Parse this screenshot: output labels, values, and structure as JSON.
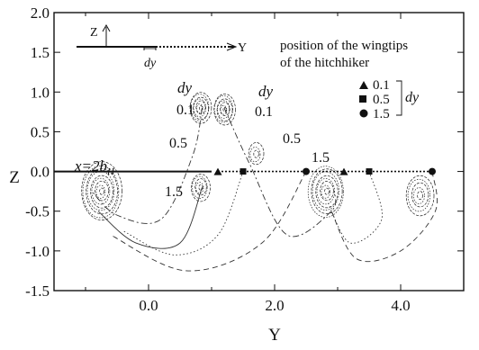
{
  "chart_data": {
    "type": "line",
    "xlabel": "Y",
    "ylabel": "Z",
    "xlim": [
      -1.5,
      5.0
    ],
    "ylim": [
      -1.5,
      2.0
    ],
    "xticks": [
      0.0,
      2.0,
      4.0
    ],
    "xtick_labels": [
      "0.0",
      "2.0",
      "4.0"
    ],
    "yticks": [
      2.0,
      1.5,
      1.0,
      0.5,
      0.0,
      -0.5,
      -1.0,
      -1.5
    ],
    "ytick_labels": [
      "2.0",
      "1.5",
      "1.0",
      "0.5",
      "0.0",
      "-0.5",
      "-1.0",
      "-1.5"
    ],
    "grid": false,
    "legend": {
      "position": "top-right",
      "title_line1": "position of the wingtips",
      "title_line2": "of the hitchhiker",
      "group_label": "dy",
      "entries": [
        {
          "marker": "triangle",
          "label": "0.1",
          "y": 3.1,
          "z": 0.0
        },
        {
          "marker": "square",
          "label": "0.5",
          "y": 3.5,
          "z": 0.0
        },
        {
          "marker": "circle",
          "label": "1.5",
          "y": 4.5,
          "z": 0.0
        }
      ]
    },
    "annotations": {
      "station": "x=2b",
      "station_sub": "H",
      "inset_z": "Z",
      "inset_y": "Y",
      "inset_dy": "dy",
      "dy_left": "dy",
      "dy_right": "dy",
      "left_01": "0.1",
      "right_01": "0.1",
      "left_05": "0.5",
      "right_05": "0.5",
      "left_15": "1.5",
      "right_15": "1.5"
    },
    "leader_wing": {
      "y_start": -1.5,
      "y_end": 1.0,
      "z": 0.0
    },
    "hitchhiker_wings": [
      {
        "dy": 0.1,
        "y_start": 1.1,
        "y_end": 3.1,
        "z": 0.0
      },
      {
        "dy": 0.5,
        "y_start": 1.5,
        "y_end": 3.5,
        "z": 0.0
      },
      {
        "dy": 1.5,
        "y_start": 2.5,
        "y_end": 4.5,
        "z": 0.0
      }
    ],
    "vortex_centers": [
      {
        "y": -0.75,
        "z": -0.25,
        "rings": 9,
        "r": 0.32
      },
      {
        "y": 0.82,
        "z": 0.8,
        "rings": 7,
        "r": 0.17
      },
      {
        "y": 1.2,
        "z": 0.78,
        "rings": 7,
        "r": 0.17
      },
      {
        "y": 0.82,
        "z": -0.2,
        "rings": 5,
        "r": 0.15
      },
      {
        "y": 2.82,
        "z": -0.25,
        "rings": 8,
        "r": 0.28
      },
      {
        "y": 4.3,
        "z": -0.3,
        "rings": 5,
        "r": 0.22
      },
      {
        "y": 1.7,
        "z": 0.22,
        "rings": 3,
        "r": 0.12
      }
    ],
    "trajectories": [
      {
        "style": "dashdot",
        "points": [
          [
            0.85,
            0.8
          ],
          [
            0.7,
            0.2
          ],
          [
            0.2,
            -0.6
          ],
          [
            -0.5,
            -0.55
          ],
          [
            -0.9,
            -0.25
          ]
        ]
      },
      {
        "style": "dashdot",
        "points": [
          [
            1.2,
            0.8
          ],
          [
            1.6,
            0.1
          ],
          [
            2.2,
            -0.8
          ],
          [
            2.9,
            -0.5
          ],
          [
            2.95,
            -0.25
          ]
        ]
      },
      {
        "style": "solid",
        "points": [
          [
            0.85,
            -0.2
          ],
          [
            0.5,
            -0.9
          ],
          [
            -0.2,
            -0.9
          ],
          [
            -0.8,
            -0.5
          ]
        ]
      },
      {
        "style": "dotted",
        "points": [
          [
            1.5,
            0.0
          ],
          [
            1.1,
            -0.8
          ],
          [
            0.4,
            -1.05
          ],
          [
            -0.4,
            -0.75
          ]
        ]
      },
      {
        "style": "dashed",
        "points": [
          [
            2.5,
            0.0
          ],
          [
            1.8,
            -0.9
          ],
          [
            0.6,
            -1.25
          ],
          [
            -0.6,
            -0.8
          ]
        ]
      },
      {
        "style": "dashed",
        "points": [
          [
            4.5,
            0.0
          ],
          [
            4.55,
            -0.5
          ],
          [
            4.0,
            -1.0
          ],
          [
            3.3,
            -1.1
          ],
          [
            2.9,
            -0.5
          ]
        ]
      },
      {
        "style": "dotted",
        "points": [
          [
            3.5,
            0.0
          ],
          [
            3.7,
            -0.6
          ],
          [
            3.2,
            -0.9
          ],
          [
            2.85,
            -0.4
          ]
        ]
      }
    ]
  }
}
